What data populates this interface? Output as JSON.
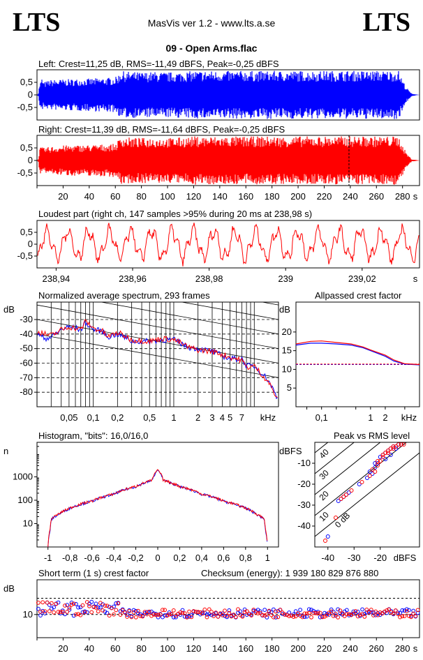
{
  "header": {
    "logo_left": "LTS",
    "logo_right": "LTS",
    "app_title": "MasVis ver 1.2 - www.lts.a.se",
    "file_title": "09 - Open Arms.flac"
  },
  "colors": {
    "left": "#0000ff",
    "right": "#ff0000",
    "grid": "#000000"
  },
  "chart_data": [
    {
      "id": "left_waveform",
      "type": "area",
      "title": "Left: Crest=11,25 dB, RMS=-11,49 dBFS, Peak=-0,25 dBFS",
      "yticks": [
        "0,5",
        "0",
        "-0,5"
      ],
      "ylim": [
        -1,
        1
      ],
      "xlim": [
        0,
        293
      ],
      "color": "#0000ff",
      "envelope_x": [
        0,
        1,
        2,
        3,
        4,
        5,
        10,
        20,
        40,
        60,
        62,
        63,
        64,
        68,
        70,
        80,
        90,
        100,
        110,
        120,
        121,
        122,
        130,
        140,
        150,
        160,
        170,
        180,
        190,
        200,
        210,
        220,
        230,
        240,
        250,
        260,
        270,
        277,
        278,
        280,
        283,
        287,
        293
      ],
      "envelope_y": [
        0,
        0.05,
        0.45,
        0.55,
        0.7,
        0.5,
        0.6,
        0.62,
        0.65,
        0.7,
        0.8,
        0.85,
        0.97,
        0.92,
        0.93,
        0.9,
        0.92,
        0.9,
        0.92,
        0.95,
        0.97,
        0.95,
        0.96,
        0.95,
        0.95,
        0.96,
        0.95,
        0.96,
        0.95,
        0.96,
        0.95,
        0.96,
        0.96,
        0.96,
        0.96,
        0.96,
        0.96,
        0.97,
        0.85,
        0.6,
        0.3,
        0.05,
        0
      ]
    },
    {
      "id": "right_waveform",
      "type": "area",
      "title": "Right: Crest=11,39 dB, RMS=-11,64 dBFS, Peak=-0,25 dBFS",
      "yticks": [
        "0,5",
        "0",
        "-0,5"
      ],
      "ylim": [
        -1,
        1
      ],
      "xlim": [
        0,
        293
      ],
      "color": "#ff0000",
      "marker_x": 238.98,
      "xticks": [
        "20",
        "40",
        "60",
        "80",
        "100",
        "120",
        "140",
        "160",
        "180",
        "200",
        "220",
        "240",
        "260",
        "280"
      ],
      "xtick_values": [
        20,
        40,
        60,
        80,
        100,
        120,
        140,
        160,
        180,
        200,
        220,
        240,
        260,
        280
      ],
      "xunit": "s",
      "envelope_x": [
        0,
        1,
        2,
        3,
        5,
        10,
        20,
        40,
        60,
        62,
        63,
        64,
        68,
        70,
        80,
        90,
        100,
        110,
        120,
        121,
        122,
        130,
        140,
        150,
        160,
        170,
        180,
        190,
        200,
        210,
        220,
        230,
        240,
        250,
        260,
        270,
        277,
        278,
        280,
        283,
        287,
        293
      ],
      "envelope_y": [
        0,
        0.05,
        0.45,
        0.55,
        0.5,
        0.55,
        0.6,
        0.62,
        0.66,
        0.8,
        0.85,
        0.97,
        0.93,
        0.92,
        0.9,
        0.92,
        0.9,
        0.92,
        0.95,
        0.97,
        0.96,
        0.96,
        0.95,
        0.96,
        0.95,
        0.96,
        0.96,
        0.95,
        0.96,
        0.96,
        0.96,
        0.96,
        0.97,
        0.96,
        0.96,
        0.96,
        0.97,
        0.85,
        0.6,
        0.3,
        0.05,
        0
      ]
    },
    {
      "id": "loudest_part",
      "type": "line",
      "title": "Loudest part (right ch, 147 samples >95% during 20 ms at 238,98 s)",
      "yticks": [
        "0,5",
        "0",
        "-0,5"
      ],
      "ylim": [
        -1,
        1
      ],
      "xlim": [
        238.935,
        239.035
      ],
      "xticks": [
        "238,94",
        "238,96",
        "238,98",
        "239",
        "239,02"
      ],
      "xtick_values": [
        238.94,
        238.96,
        238.98,
        239.0,
        239.02
      ],
      "xunit": "s",
      "color": "#ff0000"
    },
    {
      "id": "spectrum",
      "type": "line",
      "title": "Normalized average spectrum, 293 frames",
      "ylabel": "dB",
      "yticks": [
        "-30",
        "-40",
        "-50",
        "-60",
        "-70",
        "-80"
      ],
      "ytick_values": [
        -30,
        -40,
        -50,
        -60,
        -70,
        -80
      ],
      "ylim": [
        -90,
        -18
      ],
      "xscale": "log",
      "xlim": [
        0.02,
        20
      ],
      "xticks": [
        "0,05",
        "0,1",
        "0,2",
        "0,5",
        "1",
        "2",
        "3",
        "4",
        "5",
        "7"
      ],
      "xtick_values": [
        0.05,
        0.1,
        0.2,
        0.5,
        1,
        2,
        3,
        4,
        5,
        7
      ],
      "xunit": "kHz",
      "series": [
        {
          "color": "#0000ff",
          "x": [
            0.02,
            0.025,
            0.03,
            0.04,
            0.05,
            0.06,
            0.07,
            0.08,
            0.1,
            0.13,
            0.15,
            0.2,
            0.3,
            0.5,
            0.7,
            1,
            1.5,
            2,
            3,
            4,
            5,
            6,
            7,
            8,
            10,
            12,
            15,
            20
          ],
          "y": [
            -40,
            -43,
            -42,
            -37,
            -35,
            -36,
            -37,
            -32,
            -37,
            -38,
            -42,
            -40,
            -45,
            -45,
            -44,
            -44,
            -49,
            -50,
            -52,
            -55,
            -57,
            -57,
            -57,
            -62,
            -62,
            -66,
            -72,
            -86
          ]
        },
        {
          "color": "#ff0000",
          "x": [
            0.02,
            0.025,
            0.03,
            0.04,
            0.05,
            0.06,
            0.07,
            0.08,
            0.1,
            0.13,
            0.15,
            0.2,
            0.3,
            0.5,
            0.7,
            1,
            1.5,
            2,
            3,
            4,
            5,
            6,
            7,
            8,
            10,
            12,
            15,
            20
          ],
          "y": [
            -38,
            -40,
            -41,
            -37,
            -35,
            -36,
            -37,
            -31,
            -36,
            -38,
            -42,
            -39,
            -44,
            -45,
            -43,
            -44,
            -49,
            -51,
            -52,
            -54,
            -56,
            -57,
            -58,
            -63,
            -62,
            -67,
            -73,
            -87
          ]
        }
      ]
    },
    {
      "id": "allpassed_crest",
      "type": "line",
      "title": "Allpassed crest factor",
      "ylabel": "dB",
      "yticks": [
        "20",
        "15",
        "10",
        "5"
      ],
      "ytick_values": [
        20,
        15,
        10,
        5
      ],
      "ylim": [
        0,
        28
      ],
      "xscale": "log",
      "xlim": [
        0.03,
        10
      ],
      "xticks": [
        "0,1",
        "1",
        "2",
        "kHz"
      ],
      "xtick_values": [
        0.1,
        1,
        2
      ],
      "series": [
        {
          "color": "#0000ff",
          "x": [
            0.03,
            0.06,
            0.1,
            0.2,
            0.4,
            0.7,
            1,
            2,
            3,
            5,
            10
          ],
          "y": [
            16.5,
            17,
            17,
            16.8,
            16.5,
            15.8,
            15,
            13.5,
            12.2,
            11.4,
            11.2
          ]
        },
        {
          "color": "#ff0000",
          "x": [
            0.03,
            0.06,
            0.1,
            0.2,
            0.4,
            0.7,
            1,
            2,
            3,
            5,
            10
          ],
          "y": [
            16.8,
            17.5,
            17.6,
            17.2,
            16.8,
            16,
            15.2,
            13.8,
            12.5,
            11.5,
            11.3
          ]
        }
      ],
      "reference_lines": [
        11.3,
        11.4
      ]
    },
    {
      "id": "histogram",
      "type": "line",
      "title": "Histogram, \"bits\": 16,0/16,0",
      "ylabel": "n",
      "yscale": "log",
      "yticks": [
        "1000",
        "100",
        "10"
      ],
      "ytick_values": [
        1000,
        100,
        10
      ],
      "ylim": [
        1,
        30000
      ],
      "xlim": [
        -1.1,
        1.1
      ],
      "xticks": [
        "-1",
        "-0,8",
        "-0,6",
        "-0,4",
        "-0,2",
        "0",
        "0,2",
        "0,4",
        "0,6",
        "0,8",
        "1"
      ],
      "xtick_values": [
        -1,
        -0.8,
        -0.6,
        -0.4,
        -0.2,
        0,
        0.2,
        0.4,
        0.6,
        0.8,
        1
      ],
      "series": [
        {
          "color": "#0000ff",
          "x": [
            -1,
            -0.98,
            -0.97,
            -0.9,
            -0.8,
            -0.6,
            -0.4,
            -0.2,
            -0.05,
            0,
            0.05,
            0.2,
            0.4,
            0.6,
            0.8,
            0.9,
            0.97,
            0.98,
            1
          ],
          "y": [
            1,
            5,
            15,
            25,
            45,
            90,
            180,
            380,
            700,
            2000,
            700,
            380,
            180,
            90,
            45,
            25,
            15,
            5,
            1
          ]
        },
        {
          "color": "#ff0000",
          "x": [
            -1,
            -0.98,
            -0.97,
            -0.9,
            -0.8,
            -0.6,
            -0.4,
            -0.2,
            -0.05,
            0,
            0.05,
            0.2,
            0.4,
            0.6,
            0.8,
            0.9,
            0.97,
            0.98,
            1
          ],
          "y": [
            1,
            6,
            16,
            26,
            46,
            92,
            185,
            390,
            720,
            2100,
            720,
            390,
            185,
            92,
            46,
            26,
            16,
            6,
            1
          ]
        }
      ]
    },
    {
      "id": "peak_vs_rms",
      "type": "scatter",
      "title": "Peak vs RMS level",
      "ylabel": "dBFS",
      "xlabel": "dBFS",
      "yticks": [
        "-10",
        "-20",
        "-30",
        "-40"
      ],
      "ytick_values": [
        -10,
        -20,
        -30,
        -40
      ],
      "xticks": [
        "-40",
        "-30",
        "-20"
      ],
      "xtick_values": [
        -40,
        -30,
        -20
      ],
      "xlim": [
        -45,
        -5
      ],
      "ylim": [
        -50,
        0
      ],
      "diagonal_labels": [
        "40",
        "30",
        "20",
        "10",
        "0 dB"
      ],
      "diagonal_offsets": [
        40,
        30,
        20,
        10,
        0
      ],
      "series": [
        {
          "color": "#0000ff",
          "x": [
            -40,
            -36,
            -35,
            -34,
            -33,
            -32,
            -28,
            -25,
            -24,
            -23,
            -22,
            -21,
            -20,
            -19,
            -18,
            -17,
            -16,
            -15,
            -14,
            -13,
            -22,
            -18,
            -16,
            -14,
            -12
          ],
          "y": [
            -45,
            -28,
            -27,
            -26,
            -25,
            -24,
            -20,
            -17,
            -14,
            -15,
            -10,
            -10,
            -7,
            -6,
            -5,
            -4,
            -3,
            -2,
            -2,
            -1,
            -12,
            -8,
            -6,
            -3,
            -1
          ]
        },
        {
          "color": "#ff0000",
          "x": [
            -41,
            -37,
            -35,
            -34,
            -33,
            -31,
            -27,
            -24,
            -23,
            -22,
            -21,
            -20,
            -19,
            -18,
            -17,
            -16,
            -15,
            -14,
            -13,
            -12,
            -21,
            -19,
            -17,
            -15,
            -11
          ],
          "y": [
            -47,
            -36,
            -27,
            -26,
            -25,
            -23,
            -19,
            -16,
            -13,
            -14,
            -9,
            -9,
            -6,
            -5,
            -4,
            -3,
            -2,
            -2,
            -1,
            -1,
            -11,
            -7,
            -5,
            -3,
            -1
          ]
        }
      ]
    },
    {
      "id": "short_term_crest",
      "type": "scatter",
      "title": "Short term (1 s) crest factor",
      "checksum_label": "Checksum (energy):  1 939 180 829 876 880",
      "ylabel": "dB",
      "yticks": [
        "10"
      ],
      "ytick_values": [
        10
      ],
      "ylim": [
        0,
        25
      ],
      "xlim": [
        0,
        293
      ],
      "dashed_levels": [
        10,
        17
      ],
      "xticks": [
        "20",
        "40",
        "60",
        "80",
        "100",
        "120",
        "140",
        "160",
        "180",
        "200",
        "220",
        "240",
        "260",
        "280"
      ],
      "xtick_values": [
        20,
        40,
        60,
        80,
        100,
        120,
        140,
        160,
        180,
        200,
        220,
        240,
        260,
        280
      ],
      "xunit": "s",
      "series": [
        {
          "color": "#0000ff"
        },
        {
          "color": "#ff0000"
        }
      ]
    }
  ]
}
